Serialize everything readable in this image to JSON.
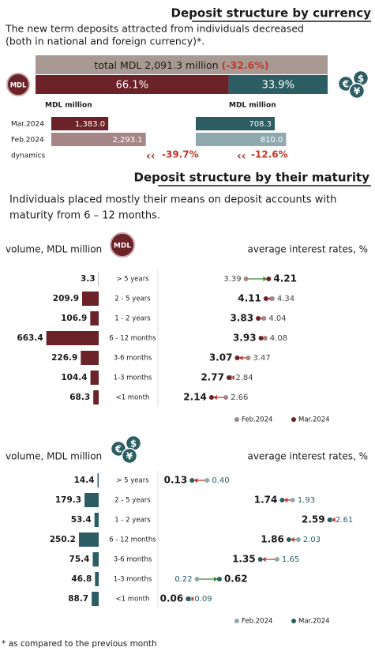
{
  "currency": {
    "title": "Deposit structure by currency",
    "text": [
      "The new term deposits attracted from individuals decreased",
      "(both in national and foreign currency)*."
    ],
    "total_label": "total MDL 2,091.3 million",
    "total_change": "(-32.6%)",
    "icon_label": "MDL",
    "currency_symbols": [
      "€",
      "$",
      "¥"
    ],
    "shares": {
      "values": [
        66.1,
        33.9
      ],
      "value_labels": [
        "66.1%",
        "33.9%"
      ],
      "colors": [
        "#6b2228",
        "#2b5d63"
      ]
    },
    "unit_label": "MDL million",
    "rows": [
      "Mar.2024",
      "Feb.2024"
    ],
    "dynamics_label": "dynamics",
    "series": [
      {
        "values": [
          1383.0,
          2293.1
        ],
        "value_labels": [
          "1,383.0",
          "2,293.1"
        ],
        "colors": [
          "#6b2228",
          "#a58585"
        ],
        "xlim": [
          0,
          2300
        ],
        "dynamics_label": "-39.7%"
      },
      {
        "values": [
          708.3,
          810.0
        ],
        "value_labels": [
          "708.3",
          "810.0"
        ],
        "colors": [
          "#2b5d63",
          "#8fa9ae"
        ],
        "xlim": [
          0,
          850
        ],
        "dynamics_label": "-12.6%"
      }
    ]
  },
  "maturity": {
    "title": "Deposit structure by their maturity",
    "text": [
      "Individuals placed mostly their means on deposit accounts with",
      "maturity from 6 – 12 months."
    ],
    "volume_label": "volume, MDL million",
    "rates_label": "average interest rates, %",
    "categories": [
      "> 5 years",
      "2 - 5 years",
      "1 - 2 years",
      "6 - 12 months",
      "3-6 months",
      "1-3 months",
      "<1 month"
    ],
    "panels": [
      {
        "icon": "mdl",
        "volume": {
          "values": [
            3.3,
            209.9,
            106.9,
            663.4,
            226.9,
            104.4,
            68.3
          ],
          "color": "#6b2228",
          "xlim": [
            0,
            700
          ]
        },
        "rates": {
          "xlim": [
            2,
            4.5
          ],
          "series": [
            {
              "name": "Feb.2024",
              "color": "#a58585",
              "values": [
                3.39,
                4.34,
                4.04,
                4.08,
                3.47,
                2.84,
                2.66
              ]
            },
            {
              "name": "Mar.2024",
              "color": "#6b2228",
              "values": [
                4.21,
                4.11,
                3.83,
                3.93,
                3.07,
                2.77,
                2.14
              ]
            }
          ]
        }
      },
      {
        "icon": "currency",
        "volume": {
          "values": [
            14.4,
            179.3,
            53.4,
            250.2,
            75.4,
            46.8,
            88.7
          ],
          "color": "#2b5d63",
          "xlim": [
            0,
            700
          ]
        },
        "rates": {
          "xlim": [
            0,
            2.7
          ],
          "series": [
            {
              "name": "Feb.2024",
              "color": "#8fa9ae",
              "values": [
                0.4,
                1.93,
                2.61,
                2.03,
                1.65,
                0.22,
                0.09
              ],
              "value_labels": [
                "0.40",
                "1.93",
                "2.61",
                "2.03",
                "1.65",
                "0.22",
                "0.09"
              ]
            },
            {
              "name": "Mar.2024",
              "color": "#2b5d63",
              "values": [
                0.13,
                1.74,
                2.59,
                1.86,
                1.35,
                0.62,
                0.06
              ]
            }
          ]
        }
      }
    ]
  },
  "footnote": "* as compared to the previous month"
}
